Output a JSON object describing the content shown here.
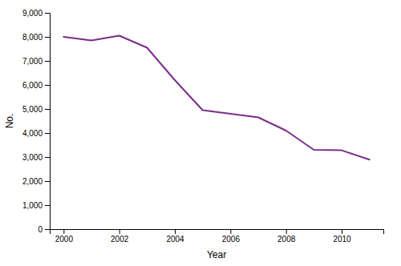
{
  "chart_data": {
    "type": "line",
    "x": [
      2000,
      2001,
      2002,
      2003,
      2004,
      2005,
      2006,
      2007,
      2008,
      2009,
      2010,
      2011
    ],
    "values": [
      8000,
      7850,
      8050,
      7550,
      6200,
      4950,
      4800,
      4650,
      4100,
      3300,
      3280,
      2890
    ],
    "color": "#7B2D8B",
    "xlabel": "Year",
    "ylabel": "No.",
    "xlim": [
      1999.5,
      2011.5
    ],
    "xticks": [
      2000,
      2002,
      2004,
      2006,
      2008,
      2010
    ],
    "ylim": [
      0,
      9000
    ],
    "yticks": [
      0,
      {
        "value": 1000,
        "label": "1,000"
      },
      {
        "value": 2000,
        "label": "2,000"
      },
      {
        "value": 3000,
        "label": "3,000"
      },
      {
        "value": 4000,
        "label": "4,000"
      },
      {
        "value": 5000,
        "label": "5,000"
      },
      {
        "value": 6000,
        "label": "6,000"
      },
      {
        "value": 7000,
        "label": "7,000"
      },
      {
        "value": 8000,
        "label": "8,000"
      },
      {
        "value": 9000,
        "label": "9,000"
      }
    ],
    "grid": false
  }
}
